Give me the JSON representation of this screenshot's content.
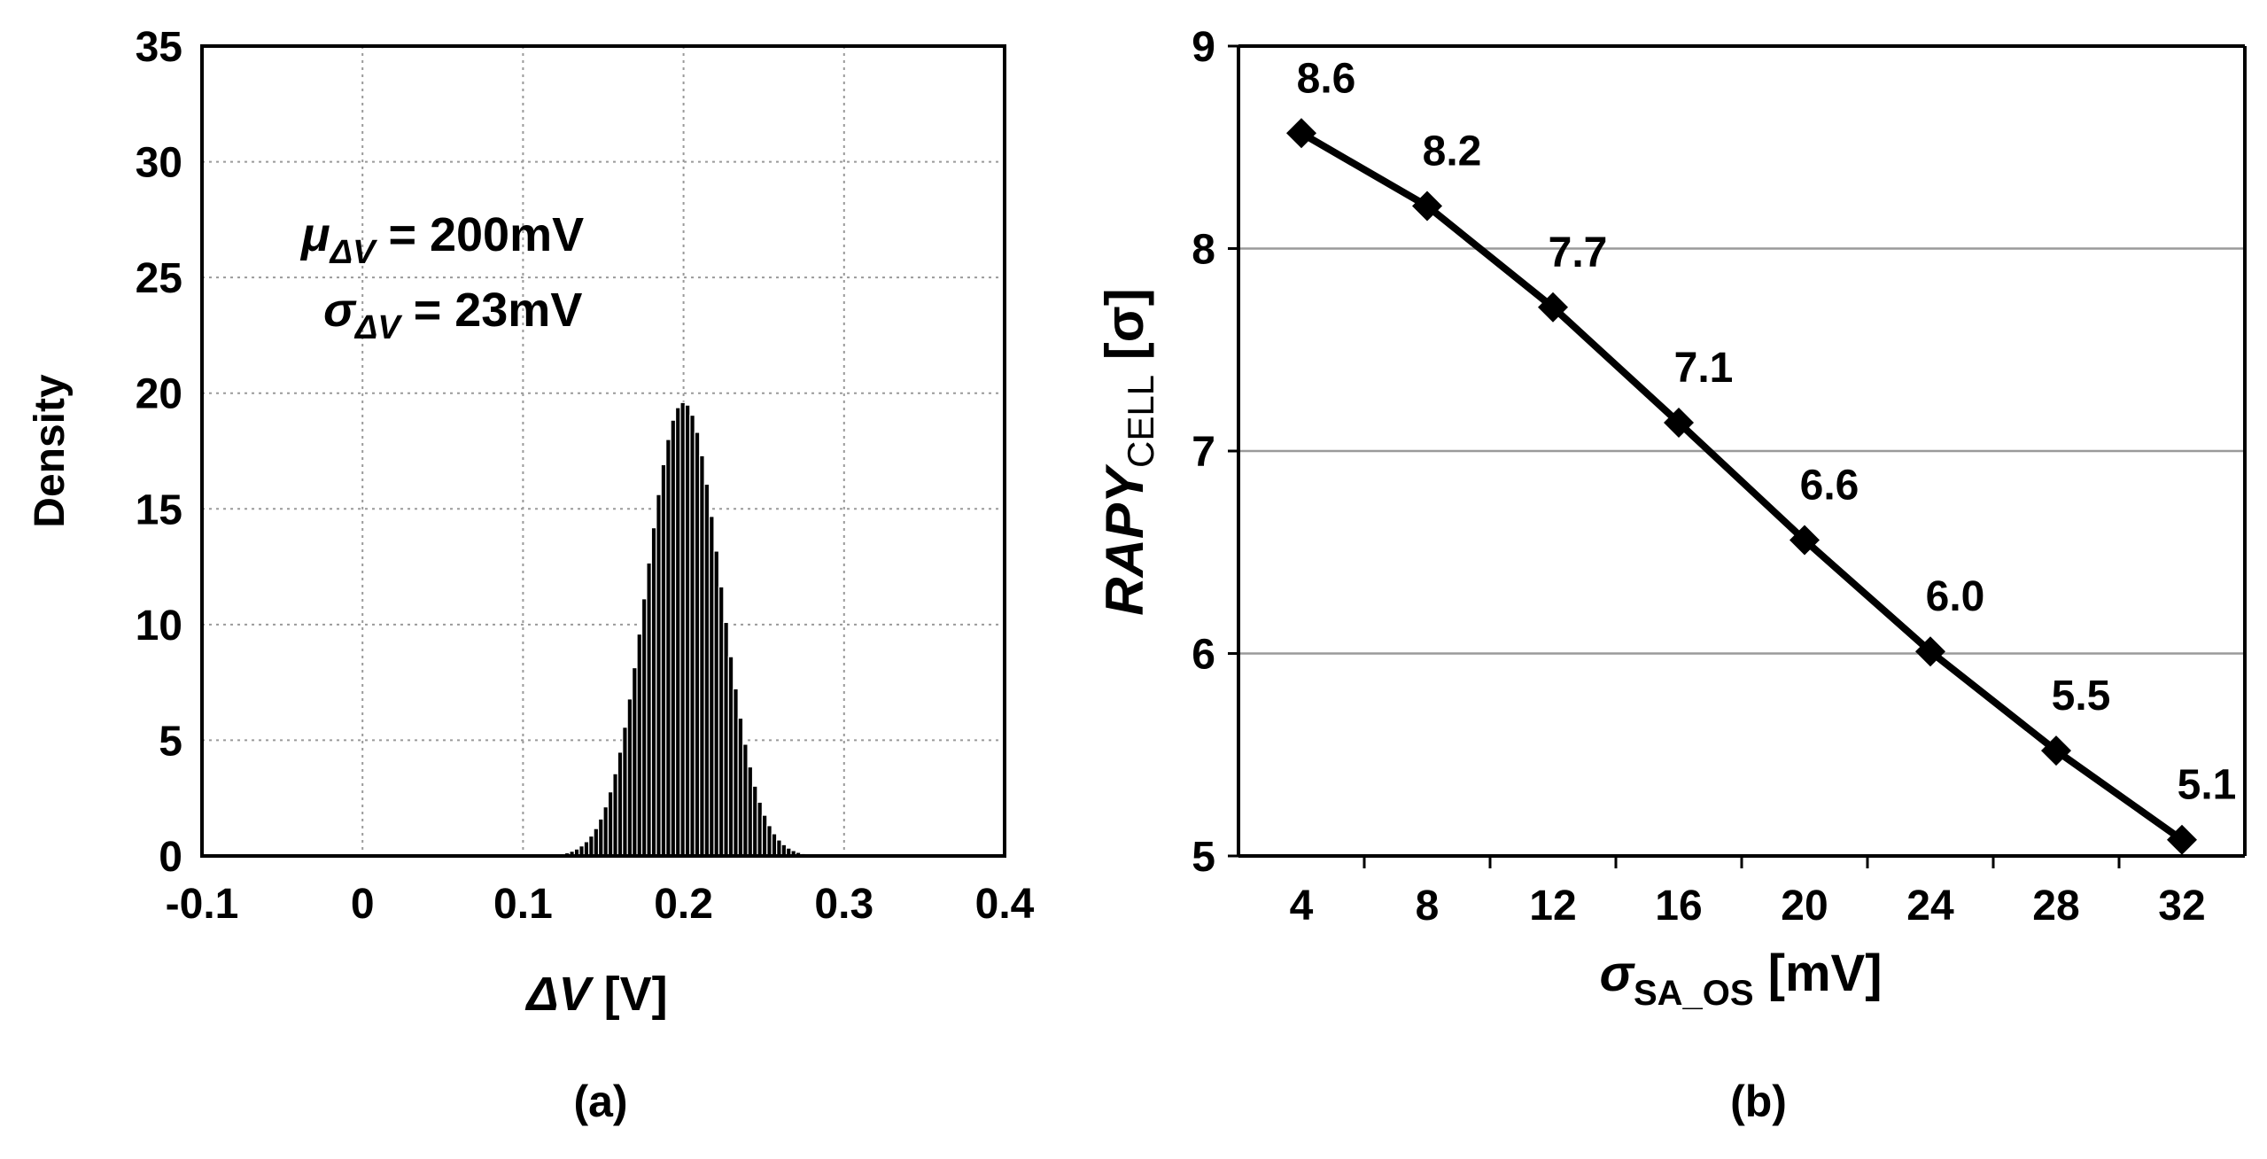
{
  "charts": [
    {
      "panel_label": "(a)",
      "ylabel": "Density",
      "xlabel_symbol": "ΔV",
      "xlabel_unit": " [V]",
      "annotation_mu": {
        "symbol": "μ",
        "subscript": "ΔV",
        "text": " = 200mV"
      },
      "annotation_sigma": {
        "symbol": "σ",
        "subscript": "ΔV",
        "text": " = 23mV"
      }
    },
    {
      "panel_label": "(b)",
      "ylabel_main": "RAPY",
      "ylabel_sub": "CELL",
      "ylabel_unit": " [σ]",
      "xlabel_main": "σ",
      "xlabel_sub": "SA_OS",
      "xlabel_unit": " [mV]"
    }
  ],
  "chart_data": [
    {
      "type": "bar",
      "title": "",
      "xlabel": "ΔV [V]",
      "ylabel": "Density",
      "xlim": [
        -0.1,
        0.4
      ],
      "ylim": [
        0,
        35
      ],
      "grid": true,
      "xticks": [
        "-0.1",
        "0",
        "0.1",
        "0.2",
        "0.3",
        "0.4"
      ],
      "yticks": [
        "0",
        "5",
        "10",
        "15",
        "20",
        "25",
        "30",
        "35"
      ],
      "bin_width": 0.003,
      "mean": 0.2,
      "std": 0.023,
      "peak_density": 19.6,
      "annotations": [
        "μΔV = 200mV",
        "σΔV = 23mV"
      ]
    },
    {
      "type": "line",
      "title": "",
      "xlabel": "σSA_OS [mV]",
      "ylabel": "RAPYCELL [σ]",
      "x": [
        4,
        8,
        12,
        16,
        20,
        24,
        28,
        32
      ],
      "y": [
        8.57,
        8.21,
        7.71,
        7.14,
        6.56,
        6.01,
        5.52,
        5.08
      ],
      "data_labels": [
        "8.6",
        "8.2",
        "7.7",
        "7.1",
        "6.6",
        "6.0",
        "5.5",
        "5.1"
      ],
      "xticks": [
        "4",
        "8",
        "12",
        "16",
        "20",
        "24",
        "28",
        "32"
      ],
      "yticks": [
        "5",
        "6",
        "7",
        "8",
        "9"
      ],
      "ylim": [
        5,
        9
      ],
      "grid": "horizontal",
      "marker": "diamond"
    }
  ]
}
